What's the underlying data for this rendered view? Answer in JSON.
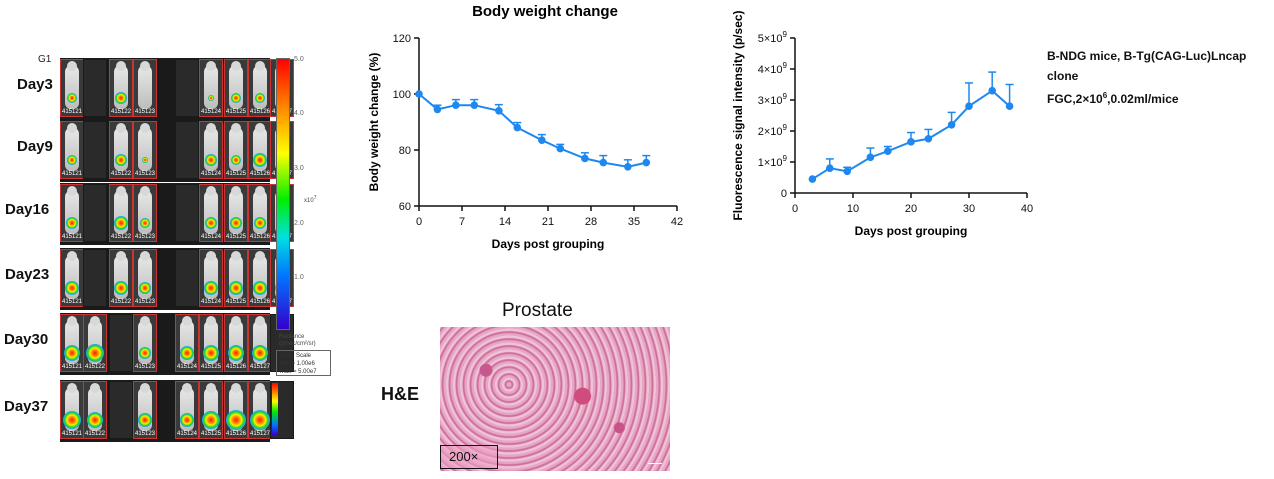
{
  "imaging": {
    "group": "G1",
    "days": [
      {
        "label": "Day3",
        "ids": [
          "415121",
          "415122",
          "415123",
          "415124",
          "415125",
          "415126",
          "415127"
        ]
      },
      {
        "label": "Day9",
        "ids": [
          "415121",
          "415122",
          "415123",
          "415124",
          "415125",
          "415126",
          "415127"
        ]
      },
      {
        "label": "Day16",
        "ids": [
          "415121",
          "415122",
          "415123",
          "415124",
          "415125",
          "415126",
          "415127"
        ]
      },
      {
        "label": "Day23",
        "ids": [
          "415121",
          "415122",
          "415123",
          "415124",
          "415125",
          "415126",
          "415127"
        ]
      },
      {
        "label": "Day30",
        "ids": [
          "415121",
          "415122",
          "415123",
          "415124",
          "415125",
          "415126",
          "415127"
        ]
      },
      {
        "label": "Day37",
        "ids": [
          "415121",
          "415122",
          "415123",
          "415124",
          "415125",
          "415126",
          "415127"
        ]
      }
    ],
    "scale": {
      "ticks": [
        "5.0",
        "4.0",
        "3.0",
        "2.0",
        "1.0"
      ],
      "exponent": "x10",
      "exponent_power": "7",
      "radiance_label": "Radiance",
      "radiance_unit": "(p/sec/cm²/sr)",
      "color_scale_title": "Color Scale",
      "color_scale_min": "Min = 1.00e6",
      "color_scale_max": "Max = 5.00e7"
    }
  },
  "chart_data": [
    {
      "type": "line",
      "title": "Body weight change",
      "xlabel": "Days post grouping",
      "ylabel": "Body weight change (%)",
      "xlim": [
        0,
        42
      ],
      "ylim": [
        60,
        120
      ],
      "xticks": [
        "0",
        "7",
        "14",
        "21",
        "28",
        "35",
        "42"
      ],
      "yticks": [
        "60",
        "80",
        "100",
        "120"
      ],
      "series": [
        {
          "x": [
            0,
            3,
            6,
            9,
            13,
            16,
            20,
            23,
            27,
            30,
            34,
            37
          ],
          "y": [
            100,
            94.5,
            96,
            96,
            94,
            88,
            83.5,
            80.5,
            77,
            75.5,
            74,
            75.5
          ],
          "err": [
            0,
            1.5,
            2,
            2,
            2.2,
            1.8,
            2,
            1.5,
            2,
            2.5,
            2.5,
            2.5
          ],
          "color": "#1e88f0"
        }
      ]
    },
    {
      "type": "line",
      "title": "",
      "xlabel": "Days post grouping",
      "ylabel": "Fluorescence signal intensity (p/sec)",
      "xlim": [
        0,
        40
      ],
      "ylim": [
        0,
        5000000000.0
      ],
      "xticks": [
        "0",
        "10",
        "20",
        "30",
        "40"
      ],
      "yticks": [
        {
          "mantissa": "0",
          "exp": ""
        },
        {
          "mantissa": "1×10",
          "exp": "9"
        },
        {
          "mantissa": "2×10",
          "exp": "9"
        },
        {
          "mantissa": "3×10",
          "exp": "9"
        },
        {
          "mantissa": "4×10",
          "exp": "9"
        },
        {
          "mantissa": "5×10",
          "exp": "9"
        }
      ],
      "series": [
        {
          "x": [
            3,
            6,
            9,
            13,
            16,
            20,
            23,
            27,
            30,
            34,
            37
          ],
          "y": [
            450000000.0,
            800000000.0,
            700000000.0,
            1150000000.0,
            1350000000.0,
            1650000000.0,
            1750000000.0,
            2200000000.0,
            2800000000.0,
            3300000000.0,
            2800000000.0
          ],
          "err": [
            0,
            300000000.0,
            130000000.0,
            300000000.0,
            150000000.0,
            300000000.0,
            300000000.0,
            400000000.0,
            750000000.0,
            600000000.0,
            700000000.0
          ],
          "color": "#1e88f0"
        }
      ],
      "annotation": {
        "line1": "B-NDG mice, B-Tg(CAG-Luc)Lncap clone",
        "line2_prefix": "FGC,2×10",
        "line2_sup": "6",
        "line2_suffix": ",0.02ml/mice"
      }
    }
  ],
  "histology": {
    "title": "Prostate",
    "stain": "H&E",
    "magnification": "200×"
  }
}
